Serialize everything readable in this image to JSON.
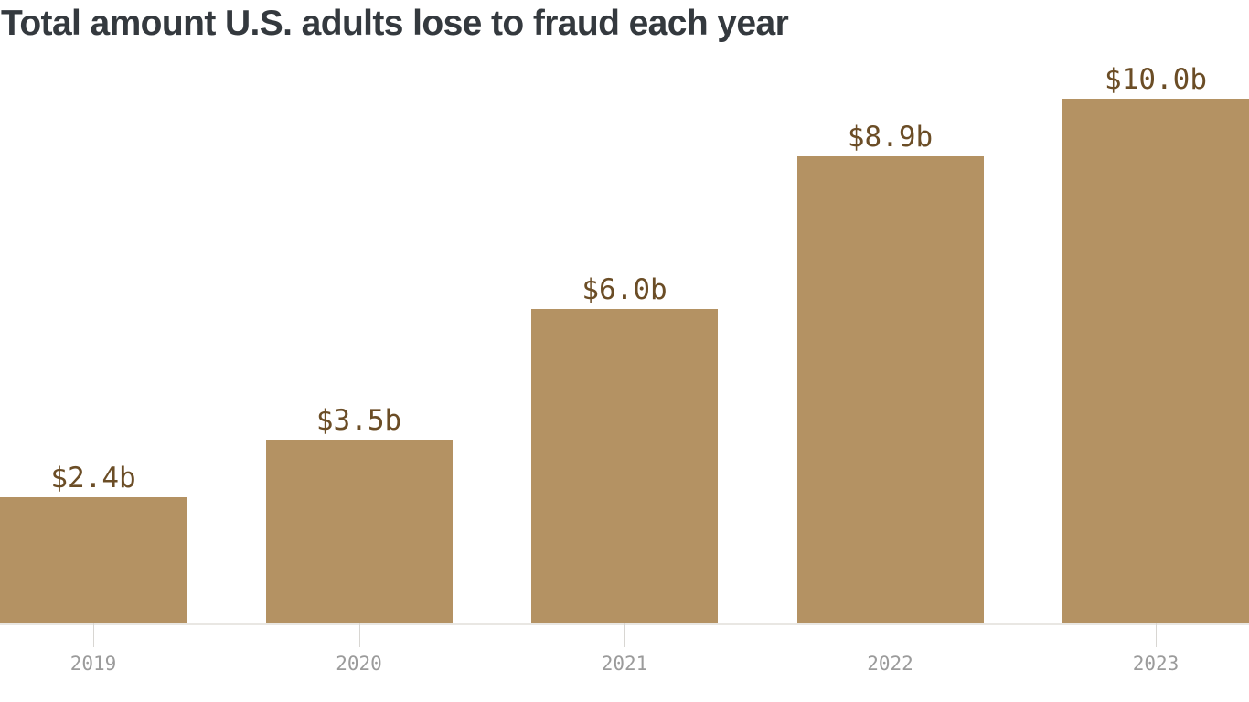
{
  "chart_data": {
    "type": "bar",
    "title": "Total amount U.S. adults lose to fraud each year",
    "categories": [
      "2019",
      "2020",
      "2021",
      "2022",
      "2023"
    ],
    "values": [
      2.4,
      3.5,
      6.0,
      8.9,
      10.0
    ],
    "value_labels": [
      "$2.4b",
      "$3.5b",
      "$6.0b",
      "$8.9b",
      "$10.0b"
    ],
    "xlabel": "",
    "ylabel": "",
    "ylim": [
      0,
      10
    ],
    "grid": false,
    "legend": false,
    "value_labels_position": "above-bars",
    "colors": {
      "bar": "#b49263",
      "value_label": "#6b4d26",
      "axis_label": "#9b9b9b",
      "tick": "#d8d6d2",
      "axis_line": "#e9e7e3",
      "title": "#34393e",
      "background": "#ffffff"
    }
  }
}
